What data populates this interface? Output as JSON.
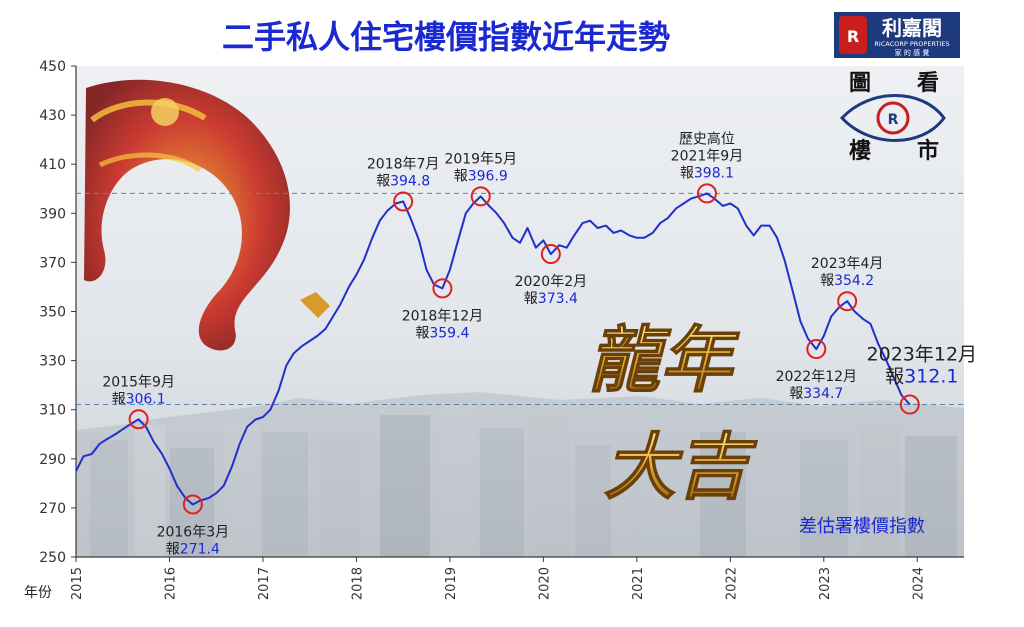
{
  "header": {
    "title": "二手私人住宅樓價指數近年走勢",
    "brand_name": "利嘉閣",
    "brand_en": "RICACORP PROPERTIES",
    "brand_tagline": "家 的 感 覺",
    "corner_badge": [
      "圖",
      "看",
      "樓",
      "市"
    ]
  },
  "overlay": {
    "slogan_line1": "龍年",
    "slogan_line2": "大吉",
    "source_label": "差估署樓價指數"
  },
  "colors": {
    "line": "#2030c8",
    "title": "#1a2ad0",
    "marker": "#e02020",
    "reference": "#5a86b8",
    "highlight_value": "#1a2ad0",
    "brand_bg": "#1e3a7e"
  },
  "chart_data": {
    "type": "line",
    "xlabel": "年份",
    "ylabel": "",
    "ylim": [
      250,
      450
    ],
    "xlim": [
      2015,
      2024.5
    ],
    "yticks": [
      250,
      270,
      290,
      310,
      330,
      350,
      370,
      390,
      410,
      430,
      450
    ],
    "xticks": [
      "2015",
      "2016",
      "2017",
      "2018",
      "2019",
      "2020",
      "2021",
      "2022",
      "2023",
      "2024"
    ],
    "grid": false,
    "reference_lines": [
      398.1,
      312.1
    ],
    "series": [
      {
        "name": "",
        "points": [
          [
            2015.0,
            285
          ],
          [
            2015.08,
            291
          ],
          [
            2015.17,
            292
          ],
          [
            2015.25,
            296
          ],
          [
            2015.33,
            298
          ],
          [
            2015.42,
            300
          ],
          [
            2015.5,
            302
          ],
          [
            2015.58,
            304
          ],
          [
            2015.67,
            306.1
          ],
          [
            2015.75,
            303
          ],
          [
            2015.83,
            297
          ],
          [
            2015.92,
            292
          ],
          [
            2016.0,
            286
          ],
          [
            2016.08,
            279
          ],
          [
            2016.17,
            274
          ],
          [
            2016.25,
            271.4
          ],
          [
            2016.33,
            273
          ],
          [
            2016.42,
            274
          ],
          [
            2016.5,
            276
          ],
          [
            2016.58,
            279
          ],
          [
            2016.67,
            287
          ],
          [
            2016.75,
            296
          ],
          [
            2016.83,
            303
          ],
          [
            2016.92,
            306
          ],
          [
            2017.0,
            307
          ],
          [
            2017.08,
            310
          ],
          [
            2017.17,
            318
          ],
          [
            2017.25,
            328
          ],
          [
            2017.33,
            333
          ],
          [
            2017.42,
            336
          ],
          [
            2017.5,
            338
          ],
          [
            2017.58,
            340
          ],
          [
            2017.67,
            343
          ],
          [
            2017.75,
            348
          ],
          [
            2017.83,
            353
          ],
          [
            2017.92,
            360
          ],
          [
            2018.0,
            365
          ],
          [
            2018.08,
            371
          ],
          [
            2018.17,
            380
          ],
          [
            2018.25,
            387
          ],
          [
            2018.33,
            391
          ],
          [
            2018.42,
            394
          ],
          [
            2018.5,
            394.8
          ],
          [
            2018.58,
            388
          ],
          [
            2018.67,
            379
          ],
          [
            2018.75,
            367
          ],
          [
            2018.83,
            361
          ],
          [
            2018.92,
            359.4
          ],
          [
            2019.0,
            367
          ],
          [
            2019.08,
            378
          ],
          [
            2019.17,
            390
          ],
          [
            2019.25,
            394
          ],
          [
            2019.33,
            396.9
          ],
          [
            2019.42,
            393
          ],
          [
            2019.5,
            390
          ],
          [
            2019.58,
            386
          ],
          [
            2019.67,
            380
          ],
          [
            2019.75,
            378
          ],
          [
            2019.83,
            384
          ],
          [
            2019.92,
            376
          ],
          [
            2020.0,
            379
          ],
          [
            2020.08,
            373.4
          ],
          [
            2020.17,
            377
          ],
          [
            2020.25,
            376
          ],
          [
            2020.33,
            381
          ],
          [
            2020.42,
            386
          ],
          [
            2020.5,
            387
          ],
          [
            2020.58,
            384
          ],
          [
            2020.67,
            385
          ],
          [
            2020.75,
            382
          ],
          [
            2020.83,
            383
          ],
          [
            2020.92,
            381
          ],
          [
            2021.0,
            380
          ],
          [
            2021.08,
            380
          ],
          [
            2021.17,
            382
          ],
          [
            2021.25,
            386
          ],
          [
            2021.33,
            388
          ],
          [
            2021.42,
            392
          ],
          [
            2021.5,
            394
          ],
          [
            2021.58,
            396
          ],
          [
            2021.67,
            397
          ],
          [
            2021.75,
            398.1
          ],
          [
            2021.83,
            396
          ],
          [
            2021.92,
            393
          ],
          [
            2022.0,
            394
          ],
          [
            2022.08,
            392
          ],
          [
            2022.17,
            385
          ],
          [
            2022.25,
            381
          ],
          [
            2022.33,
            385
          ],
          [
            2022.42,
            385
          ],
          [
            2022.5,
            380
          ],
          [
            2022.58,
            371
          ],
          [
            2022.67,
            358
          ],
          [
            2022.75,
            346
          ],
          [
            2022.83,
            339
          ],
          [
            2022.92,
            334.7
          ],
          [
            2023.0,
            340
          ],
          [
            2023.08,
            348
          ],
          [
            2023.17,
            352
          ],
          [
            2023.25,
            354.2
          ],
          [
            2023.33,
            350
          ],
          [
            2023.42,
            347
          ],
          [
            2023.5,
            345
          ],
          [
            2023.58,
            337
          ],
          [
            2023.67,
            330
          ],
          [
            2023.75,
            323
          ],
          [
            2023.83,
            316
          ],
          [
            2023.92,
            312.1
          ]
        ]
      }
    ],
    "annotations": [
      {
        "x": 2015.67,
        "y": 306.1,
        "date": "2015年9月",
        "prefix": "報",
        "value": "306.1",
        "pos": "above"
      },
      {
        "x": 2016.25,
        "y": 271.4,
        "date": "2016年3月",
        "prefix": "報",
        "value": "271.4",
        "pos": "below"
      },
      {
        "x": 2018.5,
        "y": 394.8,
        "date": "2018年7月",
        "prefix": "報",
        "value": "394.8",
        "pos": "above"
      },
      {
        "x": 2018.92,
        "y": 359.4,
        "date": "2018年12月",
        "prefix": "報",
        "value": "359.4",
        "pos": "below"
      },
      {
        "x": 2019.33,
        "y": 396.9,
        "date": "2019年5月",
        "prefix": "報",
        "value": "396.9",
        "pos": "above"
      },
      {
        "x": 2020.08,
        "y": 373.4,
        "date": "2020年2月",
        "prefix": "報",
        "value": "373.4",
        "pos": "below"
      },
      {
        "x": 2021.75,
        "y": 398.1,
        "date": "2021年9月",
        "prefix": "報",
        "value": "398.1",
        "pos": "above",
        "title": "歷史高位"
      },
      {
        "x": 2022.92,
        "y": 334.7,
        "date": "2022年12月",
        "prefix": "報",
        "value": "334.7",
        "pos": "below"
      },
      {
        "x": 2023.25,
        "y": 354.2,
        "date": "2023年4月",
        "prefix": "報",
        "value": "354.2",
        "pos": "above"
      },
      {
        "x": 2023.92,
        "y": 312.1,
        "date": "2023年12月",
        "prefix": "報",
        "value": "312.1",
        "pos": "above-large"
      }
    ]
  }
}
